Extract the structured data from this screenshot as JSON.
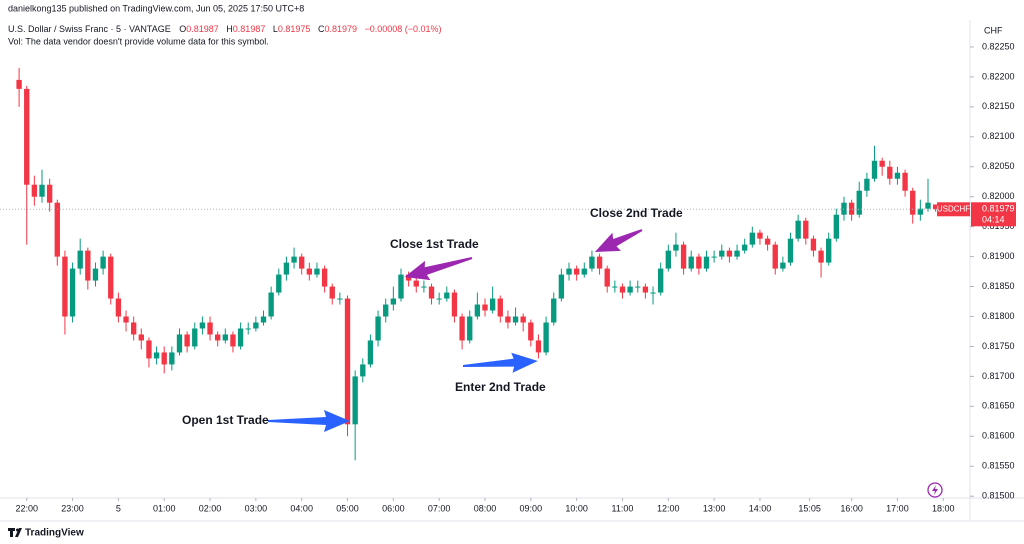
{
  "header": {
    "publisher": "danielkong135 published on TradingView.com, Jun 05, 2025 17:50 UTC+8",
    "symbol": "U.S. Dollar / Swiss Franc · 5 · VANTAGE",
    "ohlc_labels": [
      "O",
      "H",
      "L",
      "C"
    ],
    "change": "−0.00008 (−0.01%)",
    "volume_note": "Vol: The data vendor doesn't provide volume data for this symbol.",
    "currency": "CHF",
    "ticker": "USDCHF",
    "countdown": "04:14",
    "brand": "TradingView"
  },
  "chart_data": {
    "type": "candlestick",
    "up_color": "#089981",
    "down_color": "#f23645",
    "ylim": [
      0.81497,
      0.82295
    ],
    "xlim": [
      -2.5,
      124.5
    ],
    "grid": false,
    "yticks": [
      {
        "value": 0.815,
        "label": "0.81500"
      },
      {
        "value": 0.8155,
        "label": "0.81550"
      },
      {
        "value": 0.816,
        "label": "0.81600"
      },
      {
        "value": 0.8165,
        "label": "0.81650"
      },
      {
        "value": 0.817,
        "label": "0.81700"
      },
      {
        "value": 0.8175,
        "label": "0.81750"
      },
      {
        "value": 0.818,
        "label": "0.81800"
      },
      {
        "value": 0.8185,
        "label": "0.81850"
      },
      {
        "value": 0.819,
        "label": "0.81900"
      },
      {
        "value": 0.8195,
        "label": "0.81950"
      },
      {
        "value": 0.82,
        "label": "0.82000"
      },
      {
        "value": 0.8205,
        "label": "0.82050"
      },
      {
        "value": 0.821,
        "label": "0.82100"
      },
      {
        "value": 0.8215,
        "label": "0.82150"
      },
      {
        "value": 0.822,
        "label": "0.82200"
      },
      {
        "value": 0.8225,
        "label": "0.82250"
      }
    ],
    "xticks": [
      {
        "value": 1,
        "label": "22:00"
      },
      {
        "value": 7,
        "label": "23:00"
      },
      {
        "value": 13,
        "label": "5"
      },
      {
        "value": 19,
        "label": "01:00"
      },
      {
        "value": 25,
        "label": "02:00"
      },
      {
        "value": 31,
        "label": "03:00"
      },
      {
        "value": 37,
        "label": "04:00"
      },
      {
        "value": 43,
        "label": "05:00"
      },
      {
        "value": 49,
        "label": "06:00"
      },
      {
        "value": 55,
        "label": "07:00"
      },
      {
        "value": 61,
        "label": "08:00"
      },
      {
        "value": 67,
        "label": "09:00"
      },
      {
        "value": 73,
        "label": "10:00"
      },
      {
        "value": 79,
        "label": "11:00"
      },
      {
        "value": 85,
        "label": "12:00"
      },
      {
        "value": 91,
        "label": "13:00"
      },
      {
        "value": 97,
        "label": "14:00"
      },
      {
        "value": 103.5,
        "label": "15:05"
      },
      {
        "value": 109,
        "label": "16:00"
      },
      {
        "value": 115,
        "label": "17:00"
      },
      {
        "value": 121,
        "label": "18:00"
      }
    ],
    "annotations": [
      "Close 1st Trade",
      "Close 2nd Trade",
      "Open 1st Trade",
      "Enter 2nd Trade"
    ],
    "ohlc": [
      [
        0.82195,
        0.82215,
        0.8215,
        0.8218
      ],
      [
        0.8218,
        0.82185,
        0.8192,
        0.8202
      ],
      [
        0.8202,
        0.82035,
        0.81985,
        0.82
      ],
      [
        0.82,
        0.82045,
        0.8199,
        0.8202
      ],
      [
        0.8202,
        0.8203,
        0.81975,
        0.8199
      ],
      [
        0.8199,
        0.81995,
        0.81885,
        0.819
      ],
      [
        0.819,
        0.8191,
        0.8177,
        0.818
      ],
      [
        0.818,
        0.8189,
        0.8179,
        0.8188
      ],
      [
        0.8188,
        0.8193,
        0.8187,
        0.8191
      ],
      [
        0.8191,
        0.81915,
        0.81845,
        0.8186
      ],
      [
        0.8186,
        0.8189,
        0.8185,
        0.8188
      ],
      [
        0.8188,
        0.8191,
        0.8187,
        0.819
      ],
      [
        0.819,
        0.81905,
        0.8182,
        0.8183
      ],
      [
        0.8183,
        0.8184,
        0.8179,
        0.818
      ],
      [
        0.818,
        0.8181,
        0.81775,
        0.8179
      ],
      [
        0.8179,
        0.818,
        0.8176,
        0.8177
      ],
      [
        0.8177,
        0.8178,
        0.81745,
        0.8176
      ],
      [
        0.8176,
        0.81765,
        0.81715,
        0.8173
      ],
      [
        0.8173,
        0.8175,
        0.8172,
        0.8174
      ],
      [
        0.8174,
        0.8175,
        0.81705,
        0.8172
      ],
      [
        0.8172,
        0.8175,
        0.8171,
        0.8174
      ],
      [
        0.8174,
        0.8178,
        0.81735,
        0.8177
      ],
      [
        0.8177,
        0.81775,
        0.8174,
        0.8175
      ],
      [
        0.8175,
        0.8179,
        0.81745,
        0.8178
      ],
      [
        0.8178,
        0.818,
        0.8177,
        0.8179
      ],
      [
        0.8179,
        0.818,
        0.8176,
        0.8177
      ],
      [
        0.8177,
        0.81775,
        0.8175,
        0.8176
      ],
      [
        0.8176,
        0.8178,
        0.81755,
        0.8177
      ],
      [
        0.8177,
        0.81775,
        0.8174,
        0.8175
      ],
      [
        0.8175,
        0.8179,
        0.81745,
        0.8178
      ],
      [
        0.8178,
        0.8179,
        0.8177,
        0.8178
      ],
      [
        0.8178,
        0.818,
        0.81775,
        0.8179
      ],
      [
        0.8179,
        0.8181,
        0.81785,
        0.818
      ],
      [
        0.818,
        0.8185,
        0.81795,
        0.8184
      ],
      [
        0.8184,
        0.8188,
        0.81835,
        0.8187
      ],
      [
        0.8187,
        0.819,
        0.8186,
        0.8189
      ],
      [
        0.8189,
        0.81915,
        0.8188,
        0.819
      ],
      [
        0.819,
        0.81905,
        0.8187,
        0.8188
      ],
      [
        0.8188,
        0.8189,
        0.8186,
        0.8187
      ],
      [
        0.8187,
        0.8189,
        0.81865,
        0.8188
      ],
      [
        0.8188,
        0.81885,
        0.8184,
        0.8185
      ],
      [
        0.8185,
        0.81855,
        0.8182,
        0.8183
      ],
      [
        0.8183,
        0.8184,
        0.8182,
        0.8183
      ],
      [
        0.8183,
        0.81835,
        0.816,
        0.8162
      ],
      [
        0.8162,
        0.8171,
        0.8156,
        0.817
      ],
      [
        0.817,
        0.8173,
        0.8169,
        0.8172
      ],
      [
        0.8172,
        0.8177,
        0.81715,
        0.8176
      ],
      [
        0.8176,
        0.8181,
        0.8175,
        0.818
      ],
      [
        0.818,
        0.8183,
        0.8179,
        0.8182
      ],
      [
        0.8182,
        0.8185,
        0.8181,
        0.8183
      ],
      [
        0.8183,
        0.8188,
        0.81825,
        0.8187
      ],
      [
        0.8187,
        0.81875,
        0.8185,
        0.8186
      ],
      [
        0.8186,
        0.81865,
        0.8184,
        0.8185
      ],
      [
        0.8185,
        0.8186,
        0.8184,
        0.8185
      ],
      [
        0.8185,
        0.81855,
        0.8182,
        0.8183
      ],
      [
        0.8183,
        0.8184,
        0.8182,
        0.8183
      ],
      [
        0.8183,
        0.8185,
        0.81825,
        0.8184
      ],
      [
        0.8184,
        0.81845,
        0.8179,
        0.818
      ],
      [
        0.818,
        0.81805,
        0.81745,
        0.8176
      ],
      [
        0.8176,
        0.8181,
        0.81755,
        0.818
      ],
      [
        0.818,
        0.8184,
        0.81795,
        0.8182
      ],
      [
        0.8182,
        0.8183,
        0.818,
        0.8181
      ],
      [
        0.8181,
        0.8185,
        0.81805,
        0.8183
      ],
      [
        0.8183,
        0.81835,
        0.8179,
        0.818
      ],
      [
        0.818,
        0.8181,
        0.8178,
        0.8179
      ],
      [
        0.8179,
        0.81815,
        0.81785,
        0.818
      ],
      [
        0.818,
        0.81805,
        0.81775,
        0.8179
      ],
      [
        0.8179,
        0.81795,
        0.8175,
        0.8176
      ],
      [
        0.8176,
        0.8177,
        0.8173,
        0.8174
      ],
      [
        0.8174,
        0.818,
        0.81735,
        0.8179
      ],
      [
        0.8179,
        0.8184,
        0.81785,
        0.8183
      ],
      [
        0.8183,
        0.8188,
        0.81825,
        0.8187
      ],
      [
        0.8187,
        0.8189,
        0.8186,
        0.8188
      ],
      [
        0.8188,
        0.81885,
        0.8186,
        0.8187
      ],
      [
        0.8187,
        0.8189,
        0.81865,
        0.8188
      ],
      [
        0.8188,
        0.8191,
        0.81875,
        0.819
      ],
      [
        0.819,
        0.81905,
        0.8187,
        0.8188
      ],
      [
        0.8188,
        0.81885,
        0.8184,
        0.8185
      ],
      [
        0.8185,
        0.8186,
        0.8184,
        0.8185
      ],
      [
        0.8185,
        0.81855,
        0.8183,
        0.8184
      ],
      [
        0.8184,
        0.8186,
        0.81835,
        0.8185
      ],
      [
        0.8185,
        0.8186,
        0.8184,
        0.8185
      ],
      [
        0.8185,
        0.81855,
        0.8183,
        0.8184
      ],
      [
        0.8184,
        0.8185,
        0.8182,
        0.8184
      ],
      [
        0.8184,
        0.8189,
        0.81835,
        0.8188
      ],
      [
        0.8188,
        0.8192,
        0.81875,
        0.8191
      ],
      [
        0.8191,
        0.8194,
        0.819,
        0.8192
      ],
      [
        0.8192,
        0.81925,
        0.8187,
        0.8188
      ],
      [
        0.8188,
        0.8191,
        0.81875,
        0.819
      ],
      [
        0.819,
        0.81905,
        0.8187,
        0.8188
      ],
      [
        0.8188,
        0.8191,
        0.81875,
        0.819
      ],
      [
        0.819,
        0.8191,
        0.8189,
        0.819
      ],
      [
        0.819,
        0.8192,
        0.81895,
        0.8191
      ],
      [
        0.8191,
        0.81915,
        0.8189,
        0.819
      ],
      [
        0.819,
        0.8192,
        0.81895,
        0.8191
      ],
      [
        0.8191,
        0.8193,
        0.81905,
        0.8192
      ],
      [
        0.8192,
        0.8195,
        0.81915,
        0.8194
      ],
      [
        0.8194,
        0.81945,
        0.8192,
        0.8193
      ],
      [
        0.8193,
        0.81935,
        0.8191,
        0.8192
      ],
      [
        0.8192,
        0.81925,
        0.8187,
        0.8188
      ],
      [
        0.8188,
        0.819,
        0.81875,
        0.8189
      ],
      [
        0.8189,
        0.8194,
        0.81885,
        0.8193
      ],
      [
        0.8193,
        0.8197,
        0.81925,
        0.8196
      ],
      [
        0.8196,
        0.81965,
        0.8192,
        0.8193
      ],
      [
        0.8193,
        0.81935,
        0.819,
        0.8191
      ],
      [
        0.8191,
        0.81915,
        0.81865,
        0.8189
      ],
      [
        0.8189,
        0.8194,
        0.81885,
        0.8193
      ],
      [
        0.8193,
        0.8198,
        0.81925,
        0.8197
      ],
      [
        0.8197,
        0.82,
        0.8196,
        0.8199
      ],
      [
        0.8199,
        0.81995,
        0.8196,
        0.8197
      ],
      [
        0.8197,
        0.82025,
        0.81965,
        0.8201
      ],
      [
        0.8201,
        0.8204,
        0.82,
        0.8203
      ],
      [
        0.8203,
        0.82085,
        0.82025,
        0.8206
      ],
      [
        0.8206,
        0.82065,
        0.82035,
        0.8205
      ],
      [
        0.8205,
        0.8206,
        0.8202,
        0.8203
      ],
      [
        0.8203,
        0.8205,
        0.8202,
        0.8204
      ],
      [
        0.8204,
        0.82045,
        0.82,
        0.8201
      ],
      [
        0.8201,
        0.82015,
        0.81955,
        0.8197
      ],
      [
        0.8197,
        0.81995,
        0.8196,
        0.8198
      ],
      [
        0.8198,
        0.8203,
        0.81975,
        0.8199
      ],
      [
        0.81987,
        0.81987,
        0.81975,
        0.81979
      ]
    ]
  }
}
